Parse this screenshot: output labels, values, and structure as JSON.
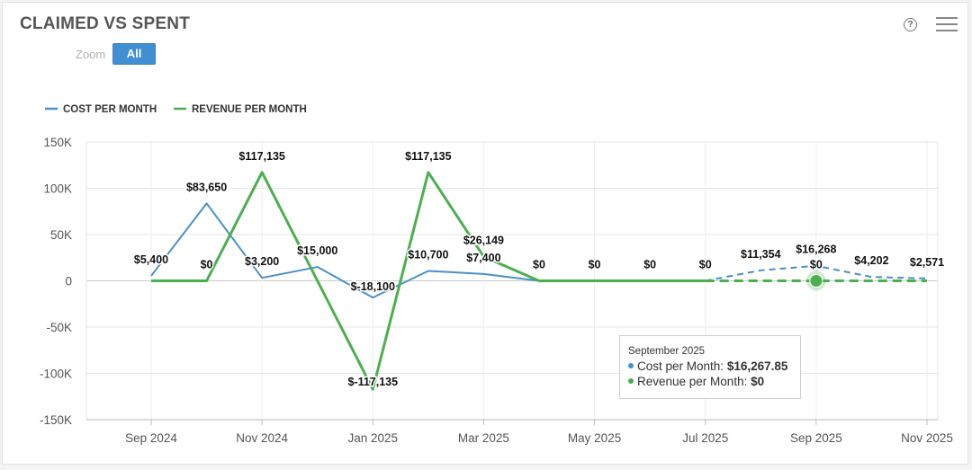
{
  "header": {
    "title": "CLAIMED VS SPENT",
    "zoom_label": "Zoom",
    "zoom_all": "All"
  },
  "icons": {
    "help": "help-icon",
    "menu": "hamburger-menu-icon"
  },
  "tooltip": {
    "date": "September 2025",
    "cost_label": "Cost per Month:",
    "cost_value": "$16,267.85",
    "revenue_label": "Revenue per Month:",
    "revenue_value": "$0"
  },
  "chart_data": {
    "type": "line",
    "title": "CLAIMED VS SPENT",
    "xlabel": "",
    "ylabel": "",
    "ylim": [
      -150000,
      150000
    ],
    "yticks": [
      150000,
      100000,
      50000,
      0,
      -50000,
      -100000,
      -150000
    ],
    "ytick_labels": [
      "150K",
      "100K",
      "50K",
      "0",
      "-50K",
      "-100K",
      "-150K"
    ],
    "x": [
      "Sep 2024",
      "Oct 2024",
      "Nov 2024",
      "Dec 2024",
      "Jan 2025",
      "Feb 2025",
      "Mar 2025",
      "Apr 2025",
      "May 2025",
      "Jun 2025",
      "Jul 2025",
      "Aug 2025",
      "Sep 2025",
      "Oct 2025",
      "Nov 2025"
    ],
    "xtick_labels": [
      "Sep 2024",
      "Nov 2024",
      "Jan 2025",
      "Mar 2025",
      "May 2025",
      "Jul 2025",
      "Sep 2025",
      "Nov 2025"
    ],
    "legend_position": "top-left",
    "grid": true,
    "forecast_start_index": 10,
    "series": [
      {
        "name": "COST PER MONTH",
        "color": "#4a90c9",
        "values": [
          5400,
          83650,
          3200,
          15000,
          -18100,
          10700,
          7400,
          0,
          0,
          0,
          0,
          11354,
          16268,
          4202,
          2571
        ],
        "labels": [
          "$5,400",
          "$83,650",
          "$3,200",
          "$15,000",
          "$-18,100",
          "$10,700",
          "$7,400",
          null,
          null,
          null,
          null,
          "$11,354",
          "$16,268",
          "$4,202",
          "$2,571"
        ]
      },
      {
        "name": "REVENUE PER MONTH",
        "color": "#4caf50",
        "values": [
          0,
          0,
          117135,
          0,
          -117135,
          117135,
          26149,
          0,
          0,
          0,
          0,
          0,
          0,
          0,
          0
        ],
        "labels": [
          null,
          "$0",
          "$117,135",
          null,
          "$-117,135",
          "$117,135",
          "$26,149",
          "$0",
          "$0",
          "$0",
          "$0",
          null,
          "$0",
          null,
          null
        ]
      }
    ],
    "highlight_index": 12
  }
}
